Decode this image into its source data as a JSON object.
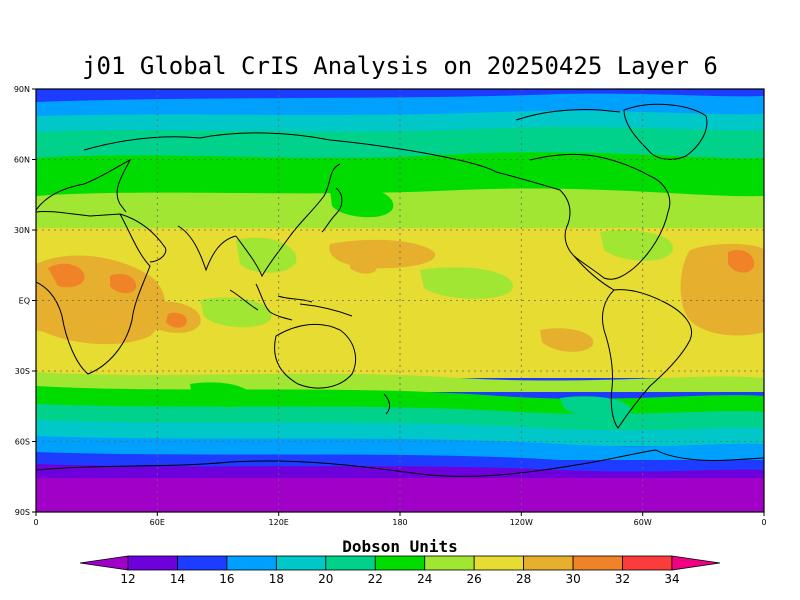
{
  "title": "j01 Global CrIS Analysis on 20250425 Layer 6",
  "colorbar": {
    "title": "Dobson Units",
    "labels": [
      "12",
      "14",
      "16",
      "18",
      "20",
      "22",
      "24",
      "26",
      "28",
      "30",
      "32",
      "34"
    ],
    "colors": [
      "#a000c8",
      "#6e00dc",
      "#1e3cff",
      "#00a0ff",
      "#00c8c8",
      "#00d28c",
      "#00dc00",
      "#a0e632",
      "#e6dc32",
      "#e6af2d",
      "#f08228",
      "#fa3c3c",
      "#f00082"
    ]
  },
  "axes": {
    "lat_labels": [
      "90N",
      "60N",
      "30N",
      "EQ",
      "30S",
      "60S",
      "90S"
    ],
    "lon_labels": [
      "0",
      "60E",
      "120E",
      "180",
      "120W",
      "60W",
      "0"
    ]
  }
}
